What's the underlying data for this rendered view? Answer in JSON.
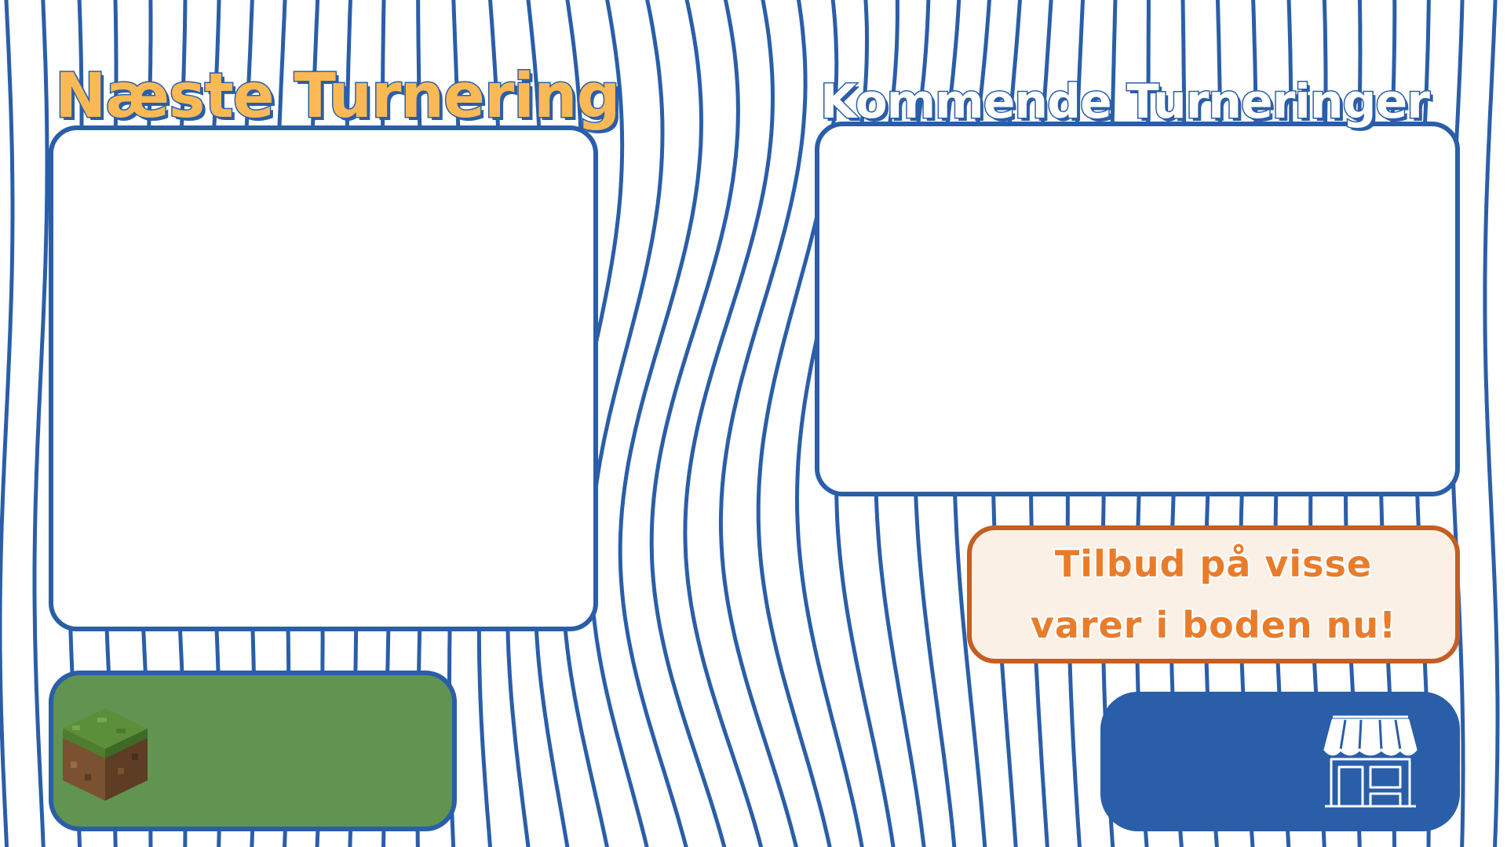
{
  "next_tournament": {
    "title": "Næste Turnering"
  },
  "upcoming_tournaments": {
    "title": "Kommende Turneringer"
  },
  "offer": {
    "line1": "Tilbud på visse",
    "line2": "varer i boden nu!"
  },
  "game_box": {
    "icon": "grass-block-icon"
  },
  "shop_box": {
    "icon": "shop-icon"
  },
  "colors": {
    "primary_blue": "#2a5ea8",
    "title_orange": "#fbb955",
    "offer_orange": "#e97c2b",
    "offer_border": "#c45e22",
    "offer_bg": "#fbf0e6",
    "game_green": "#609450",
    "background": "#ffffff"
  }
}
